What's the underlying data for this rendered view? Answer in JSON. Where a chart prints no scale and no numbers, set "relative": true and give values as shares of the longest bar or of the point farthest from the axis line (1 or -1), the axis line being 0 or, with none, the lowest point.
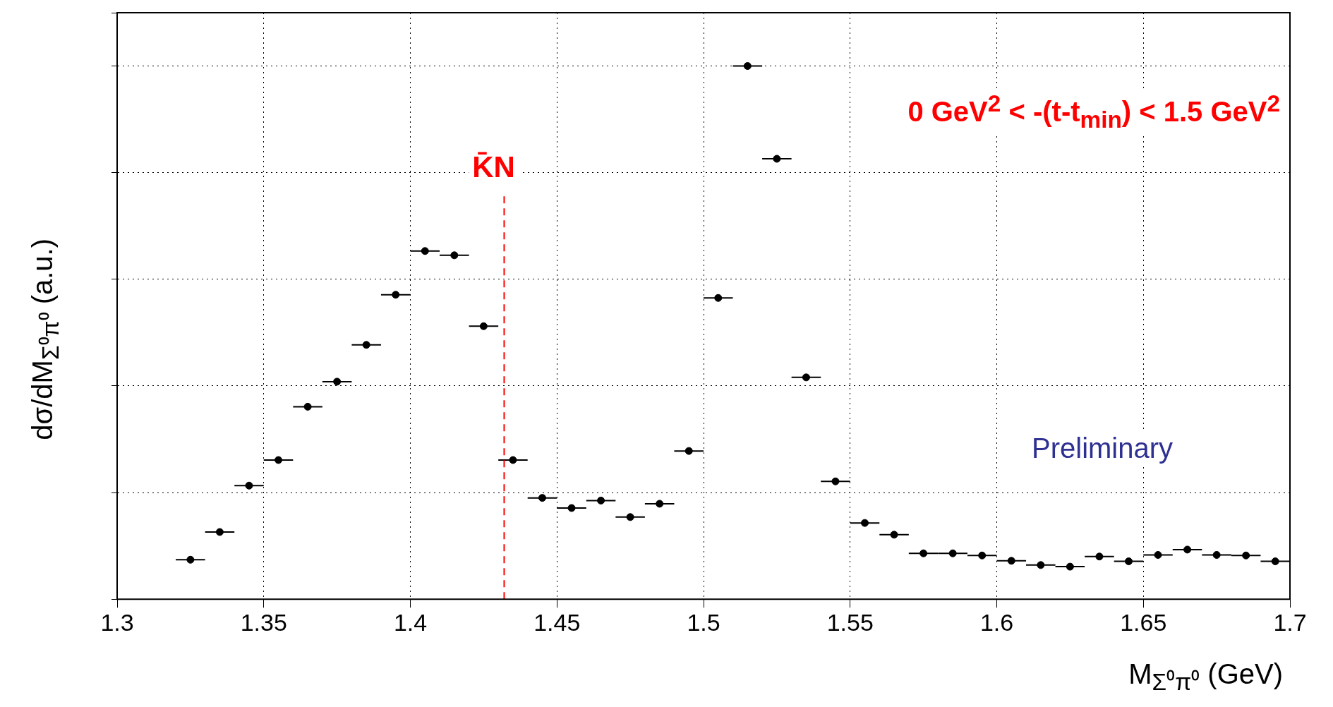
{
  "chart_data": {
    "type": "scatter",
    "relative": true,
    "xlabel": "M$_{Σ⁰π⁰}$ (GeV)",
    "ylabel": "dσ/dM$_{Σ⁰π⁰}$ (a.u.)",
    "x": [
      1.325,
      1.335,
      1.345,
      1.355,
      1.365,
      1.375,
      1.385,
      1.395,
      1.405,
      1.415,
      1.425,
      1.435,
      1.445,
      1.455,
      1.465,
      1.475,
      1.485,
      1.495,
      1.505,
      1.515,
      1.525,
      1.535,
      1.545,
      1.555,
      1.565,
      1.575,
      1.585,
      1.595,
      1.605,
      1.615,
      1.625,
      1.635,
      1.645,
      1.655,
      1.665,
      1.675,
      1.685,
      1.695
    ],
    "values": [
      0.074,
      0.126,
      0.213,
      0.261,
      0.361,
      0.408,
      0.477,
      0.571,
      0.653,
      0.645,
      0.512,
      0.261,
      0.19,
      0.171,
      0.185,
      0.154,
      0.179,
      0.278,
      0.565,
      1.0,
      0.826,
      0.416,
      0.221,
      0.143,
      0.121,
      0.086,
      0.086,
      0.082,
      0.072,
      0.064,
      0.061,
      0.08,
      0.071,
      0.083,
      0.093,
      0.083,
      0.082,
      0.071
    ],
    "xerrors": [
      0.005,
      0.005,
      0.005,
      0.005,
      0.005,
      0.005,
      0.005,
      0.005,
      0.005,
      0.005,
      0.005,
      0.005,
      0.005,
      0.005,
      0.005,
      0.005,
      0.005,
      0.005,
      0.005,
      0.005,
      0.005,
      0.005,
      0.005,
      0.005,
      0.005,
      0.005,
      0.005,
      0.005,
      0.005,
      0.005,
      0.005,
      0.005,
      0.005,
      0.005,
      0.005,
      0.005,
      0.005,
      0.005
    ],
    "color": "#000000",
    "marker": "circle",
    "xlim": [
      1.3,
      1.7
    ],
    "xticks": [
      1.3,
      1.35,
      1.4,
      1.45,
      1.5,
      1.55,
      1.6,
      1.65,
      1.7
    ],
    "grid": true,
    "ref_lines": [
      {
        "axis": "x",
        "value": 1.432,
        "label": "K̄N",
        "color": "#ff0000",
        "line_style": "dashed"
      }
    ],
    "annotations": [
      "0 GeV$^{2}$ < -(t-t$_{min}$) < 1.5 GeV$^{2}$",
      "Preliminary"
    ]
  }
}
